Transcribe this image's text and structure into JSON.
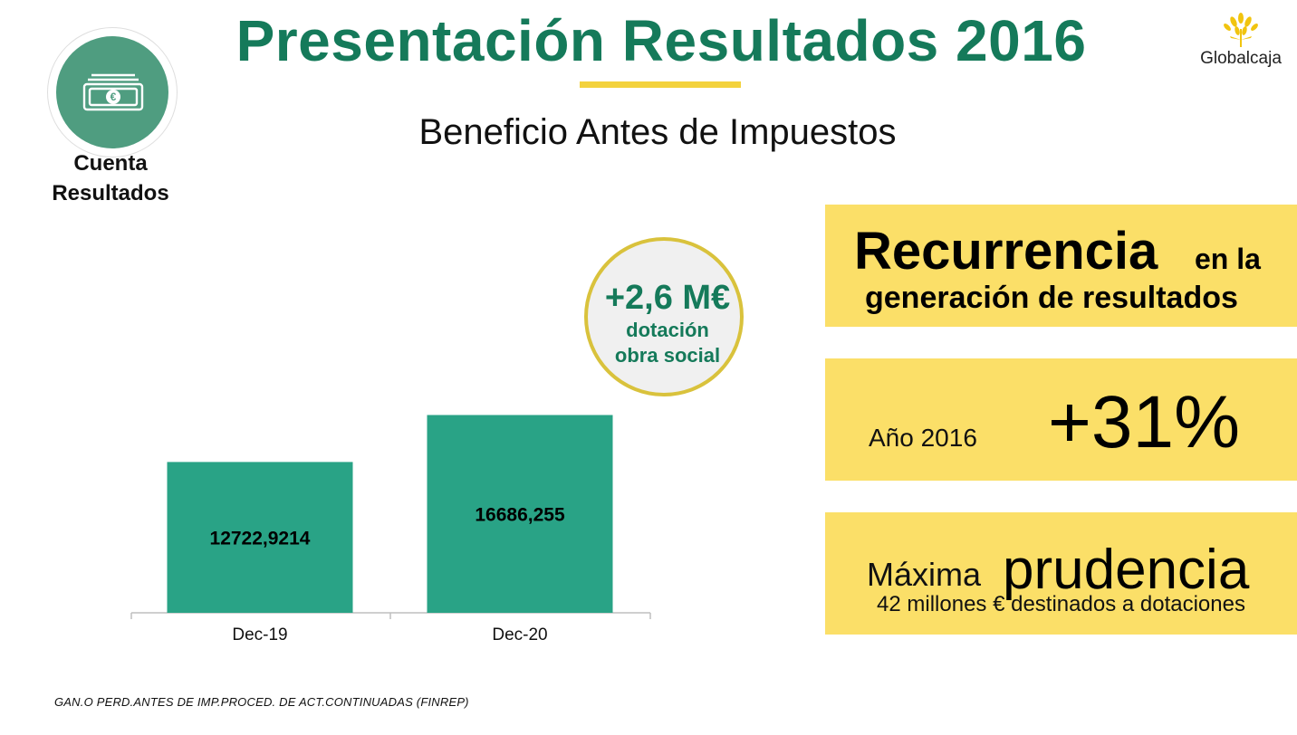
{
  "header": {
    "title": "Presentación Resultados 2016",
    "subtitle": "Beneficio Antes de Impuestos",
    "brand": "Globalcaja",
    "colors": {
      "title": "#157a5a",
      "accent": "#f3d23d"
    }
  },
  "section": {
    "icon": "banknote-euro-icon",
    "label_line1": "Cuenta",
    "label_line2": "Resultados"
  },
  "badge": {
    "value": "+2,6 M€",
    "line1": "dotación",
    "line2": "obra social"
  },
  "highlights": {
    "box1": {
      "big": "Recurrencia",
      "small": "en la",
      "line2": "generación de resultados"
    },
    "box2": {
      "label": "Año 2016",
      "value": "+31%"
    },
    "box3": {
      "small": "Máxima",
      "big": "prudencia",
      "sub": "42 millones € destinados a dotaciones"
    },
    "color": "#fbdf68"
  },
  "footnote": "GAN.O PERD.ANTES DE IMP.PROCED. DE ACT.CONTINUADAS (FINREP)",
  "chart_data": {
    "type": "bar",
    "categories": [
      "Dec-19",
      "Dec-20"
    ],
    "values": [
      12722.9214,
      16686.255
    ],
    "value_labels": [
      "12722,9214",
      "16686,255"
    ],
    "ylim": [
      0,
      21000
    ],
    "bar_color": "#29a386",
    "grid": false,
    "legend": "none"
  }
}
